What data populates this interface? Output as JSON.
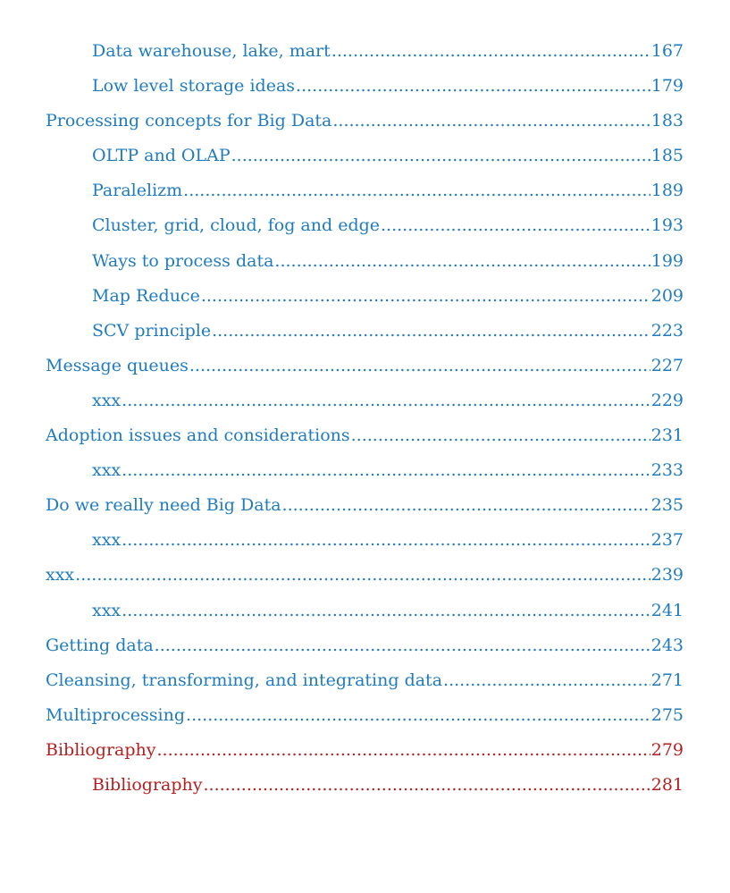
{
  "colors": {
    "link": "#1f7bbf",
    "accent": "#b41e1e"
  },
  "toc": {
    "entries": [
      {
        "title": "Data warehouse, lake, mart",
        "page": "167",
        "level": 2,
        "color": "#1f7bbf"
      },
      {
        "title": "Low level storage ideas",
        "page": "179",
        "level": 2,
        "color": "#1f7bbf"
      },
      {
        "title": "Processing concepts for Big Data",
        "page": "183",
        "level": 1,
        "color": "#1f7bbf"
      },
      {
        "title": "OLTP and OLAP",
        "page": "185",
        "level": 2,
        "color": "#1f7bbf"
      },
      {
        "title": "Paralelizm",
        "page": "189",
        "level": 2,
        "color": "#1f7bbf"
      },
      {
        "title": "Cluster, grid, cloud, fog and edge",
        "page": "193",
        "level": 2,
        "color": "#1f7bbf"
      },
      {
        "title": "Ways to process data",
        "page": "199",
        "level": 2,
        "color": "#1f7bbf"
      },
      {
        "title": "Map Reduce",
        "page": "209",
        "level": 2,
        "color": "#1f7bbf"
      },
      {
        "title": "SCV principle",
        "page": "223",
        "level": 2,
        "color": "#1f7bbf"
      },
      {
        "title": "Message queues",
        "page": "227",
        "level": 1,
        "color": "#1f7bbf"
      },
      {
        "title": "xxx",
        "page": "229",
        "level": 2,
        "color": "#1f7bbf"
      },
      {
        "title": "Adoption issues and considerations",
        "page": "231",
        "level": 1,
        "color": "#1f7bbf"
      },
      {
        "title": "xxx",
        "page": "233",
        "level": 2,
        "color": "#1f7bbf"
      },
      {
        "title": "Do we really need Big Data",
        "page": "235",
        "level": 1,
        "color": "#1f7bbf"
      },
      {
        "title": "xxx",
        "page": "237",
        "level": 2,
        "color": "#1f7bbf"
      },
      {
        "title": "xxx",
        "page": "239",
        "level": 1,
        "color": "#1f7bbf"
      },
      {
        "title": "xxx",
        "page": "241",
        "level": 2,
        "color": "#1f7bbf"
      },
      {
        "title": "Getting data",
        "page": "243",
        "level": 1,
        "color": "#1f7bbf"
      },
      {
        "title": "Cleansing, transforming, and integrating data",
        "page": "271",
        "level": 1,
        "color": "#1f7bbf"
      },
      {
        "title": "Multiprocessing",
        "page": "275",
        "level": 1,
        "color": "#1f7bbf"
      },
      {
        "title": "Bibliography",
        "page": "279",
        "level": 1,
        "color": "#b41e1e"
      },
      {
        "title": "Bibliography",
        "page": "281",
        "level": 2,
        "color": "#b41e1e"
      }
    ]
  }
}
